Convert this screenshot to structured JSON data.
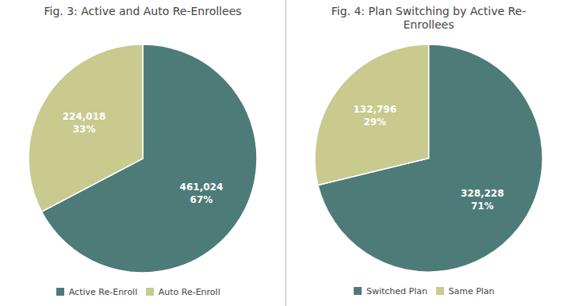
{
  "chart_data": [
    {
      "type": "pie",
      "title": "Fig. 3: Active and Auto Re-Enrollees",
      "categories": [
        "Active Re-Enroll",
        "Auto Re-Enroll"
      ],
      "values": [
        461024,
        224018
      ],
      "value_labels": [
        "461,024\n67%",
        "224,018\n33%"
      ],
      "colors": [
        "#4d7b78",
        "#c8ca8e"
      ],
      "data_labels": true,
      "legend": "bottom"
    },
    {
      "type": "pie",
      "title": "Fig. 4: Plan Switching by Active Re-\nEnrollees",
      "categories": [
        "Switched Plan",
        "Same Plan"
      ],
      "values": [
        328228,
        132796
      ],
      "value_labels": [
        "328,228\n71%",
        "132,796\n29%"
      ],
      "colors": [
        "#4d7b78",
        "#c8ca8e"
      ],
      "data_labels": true,
      "legend": "bottom"
    }
  ]
}
